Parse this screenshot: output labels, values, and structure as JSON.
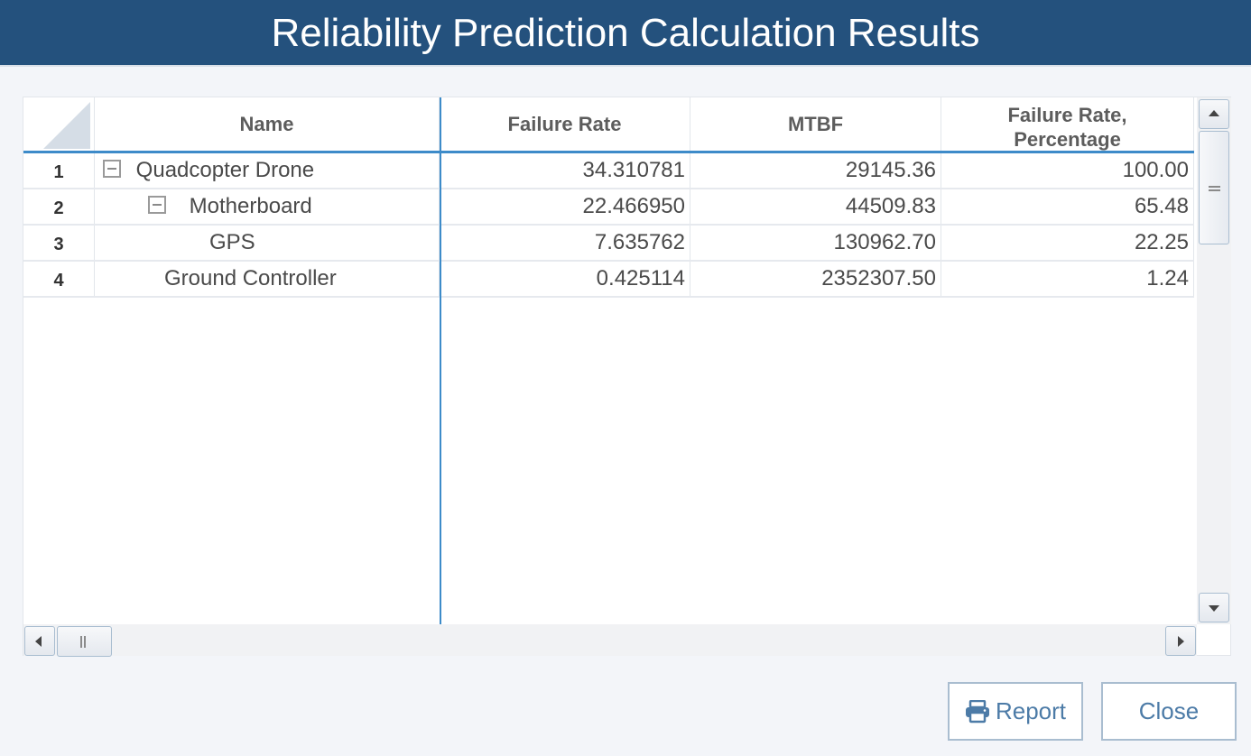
{
  "dialog": {
    "title": "Reliability Prediction Calculation Results"
  },
  "grid": {
    "columns": {
      "name": "Name",
      "failure_rate": "Failure Rate",
      "mtbf": "MTBF",
      "failure_rate_pct_line1": "Failure Rate,",
      "failure_rate_pct_line2": "Percentage"
    },
    "rows": [
      {
        "num": "1",
        "name": "Quadcopter Drone",
        "failure_rate": "34.310781",
        "mtbf": "29145.36",
        "pct": "100.00",
        "expanded": true
      },
      {
        "num": "2",
        "name": "Motherboard",
        "failure_rate": "22.466950",
        "mtbf": "44509.83",
        "pct": "65.48",
        "expanded": true
      },
      {
        "num": "3",
        "name": "GPS",
        "failure_rate": "7.635762",
        "mtbf": "130962.70",
        "pct": "22.25",
        "expanded": false
      },
      {
        "num": "4",
        "name": "Ground Controller",
        "failure_rate": "0.425114",
        "mtbf": "2352307.50",
        "pct": "1.24",
        "expanded": false
      }
    ]
  },
  "icons": {
    "collapse": "minus-square-icon",
    "print": "printer-icon"
  },
  "buttons": {
    "report_label": "Report",
    "close_label": "Close"
  },
  "colors": {
    "title_bar": "#24517d",
    "accent_line": "#3d8bc9",
    "button_text": "#4c7ba7"
  }
}
